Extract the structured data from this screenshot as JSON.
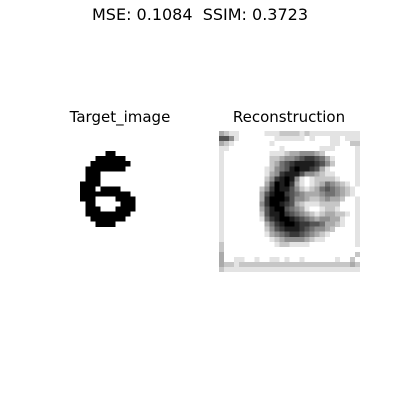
{
  "figure": {
    "suptitle": "MSE: 0.1084  SSIM: 0.3723",
    "panels": [
      {
        "title": "Target_image"
      },
      {
        "title": "Reconstruction"
      }
    ]
  },
  "colors": {
    "background": "#ffffff",
    "ink": "#000000"
  },
  "images": {
    "target_digit": "6",
    "target_rows": [
      "............................",
      "............................",
      "............................",
      "............................",
      "...........##...............",
      ".........######.............",
      "........########............",
      ".......########.............",
      ".......###..................",
      ".......###..................",
      "......####..................",
      "......###.####..............",
      "......##########............",
      "......###....####...........",
      ".......##.....###...........",
      ".......###...####...........",
      ".......#########............",
      "........#######.............",
      ".........####...............",
      "............................",
      "............................",
      "............................",
      "............................",
      "............................",
      "............................",
      "............................",
      "............................",
      "............................"
    ],
    "reconstruction_rows": [
      "3211.....1112222121111111111",
      "6641.......111111.1...11.111",
      "321.......1...........11..22",
      "11..........1.......111....1",
      "1.........11123344432......1",
      "1.........2234456776531....1",
      "1.........2356788887642....1",
      "1........1245689887631.....1",
      "1........13478886443211....1",
      "1........24789841.122221...1",
      "1........36989731.12354321.1",
      "1.......2479886421235654321.",
      "1.......3689976543334554321.",
      "1.......37999864432234332..1",
      "1.......4799876321112222...1",
      "1.......3689965431..1221...1",
      "1.......268897654321233221.1",
      "1.......15789987654344331..1",
      "1........3578998776653321..1",
      "1........24678887654432....1",
      "1........1345677654321.....1",
      "1.........12344443211......1",
      "2..........1221111.........1",
      "2...........................",
      "3..........................2",
      "3..11..1..11.1..1......1..2.",
      "3221222222222222222222222232",
      "2111111111111111111111111111"
    ]
  }
}
